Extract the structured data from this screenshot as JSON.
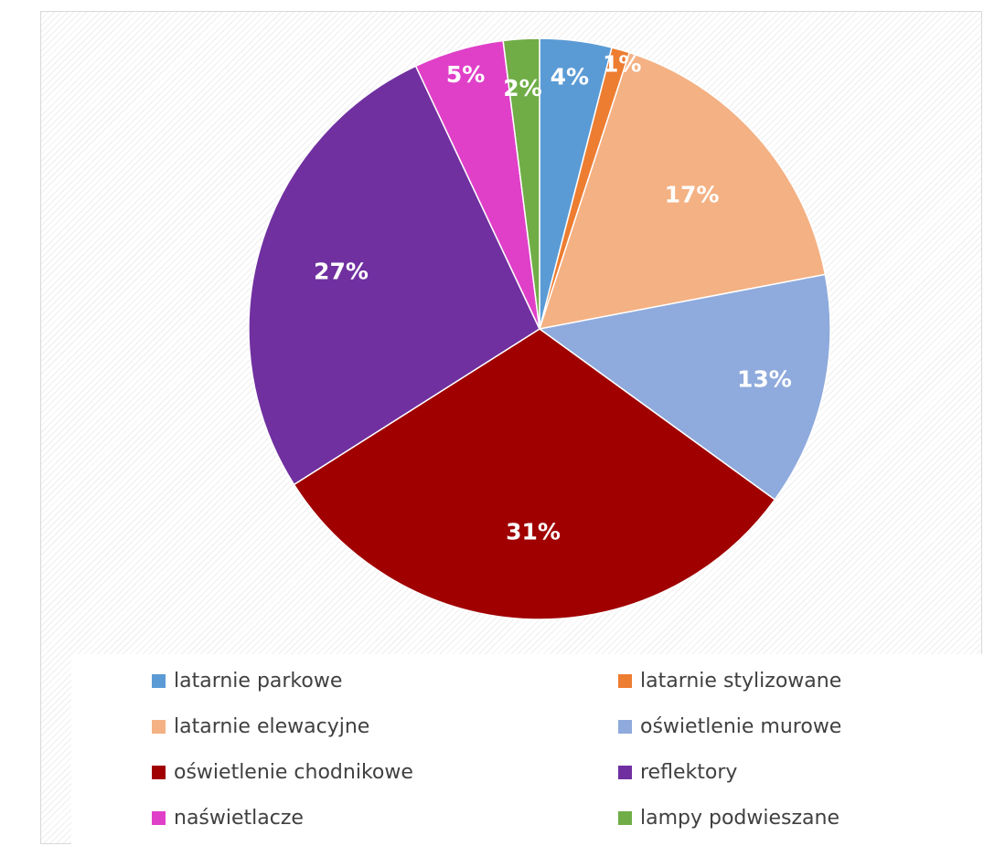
{
  "chart_data": {
    "type": "pie",
    "title": "",
    "start_angle_deg": 0,
    "direction": "clockwise",
    "legend_position": "bottom",
    "slices": [
      {
        "name": "latarnie parkowe",
        "value": 4,
        "label": "4%",
        "color": "#5b9bd5"
      },
      {
        "name": "latarnie stylizowane",
        "value": 1,
        "label": "1%",
        "color": "#ed7d31"
      },
      {
        "name": "latarnie elewacyjne",
        "value": 17,
        "label": "17%",
        "color": "#f4b183"
      },
      {
        "name": "oświetlenie murowe",
        "value": 13,
        "label": "13%",
        "color": "#8faadc"
      },
      {
        "name": "oświetlenie chodnikowe",
        "value": 31,
        "label": "31%",
        "color": "#a00000"
      },
      {
        "name": "reflektory",
        "value": 27,
        "label": "27%",
        "color": "#7030a0"
      },
      {
        "name": "naświetlacze",
        "value": 5,
        "label": "5%",
        "color": "#e040c8"
      },
      {
        "name": "lampy podwieszane",
        "value": 2,
        "label": "2%",
        "color": "#70ad47"
      }
    ]
  }
}
